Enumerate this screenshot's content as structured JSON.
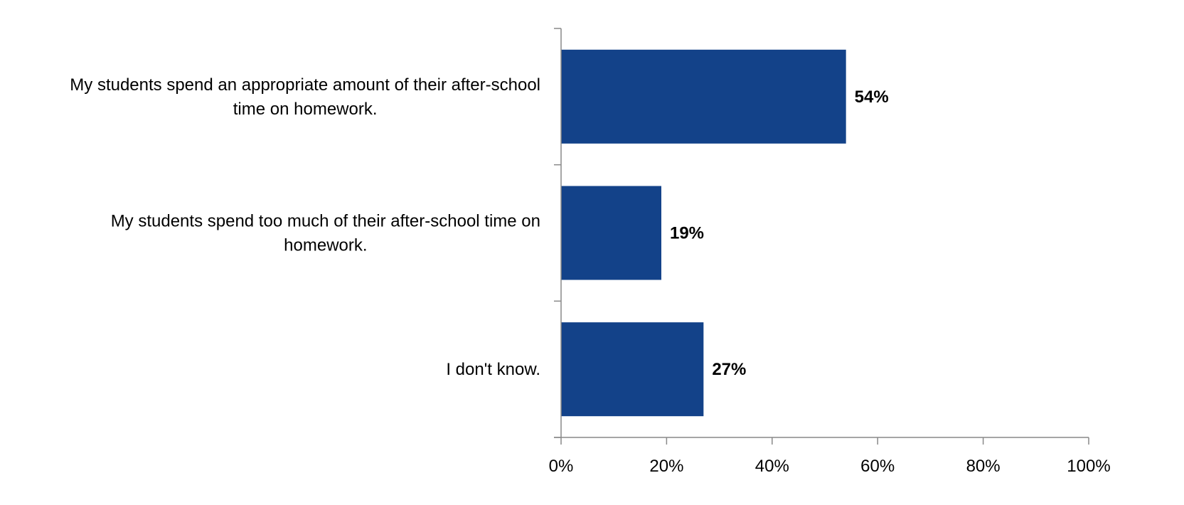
{
  "colors": {
    "bar": "#134289",
    "axis": "#898989",
    "text": "#000000"
  },
  "chart_data": {
    "type": "bar",
    "orientation": "horizontal",
    "categories": [
      [
        "My students spend an appropriate amount of their after-school",
        "time on homework."
      ],
      [
        "My students spend too much of their after-school time on",
        "homework."
      ],
      [
        "I don't know."
      ]
    ],
    "values": [
      54,
      19,
      27
    ],
    "value_labels": [
      "54%",
      "19%",
      "27%"
    ],
    "xlim": [
      0,
      100
    ],
    "x_ticks": [
      0,
      20,
      40,
      60,
      80,
      100
    ],
    "x_tick_labels": [
      "0%",
      "20%",
      "40%",
      "60%",
      "80%",
      "100%"
    ],
    "grid": false,
    "legend": "none"
  }
}
